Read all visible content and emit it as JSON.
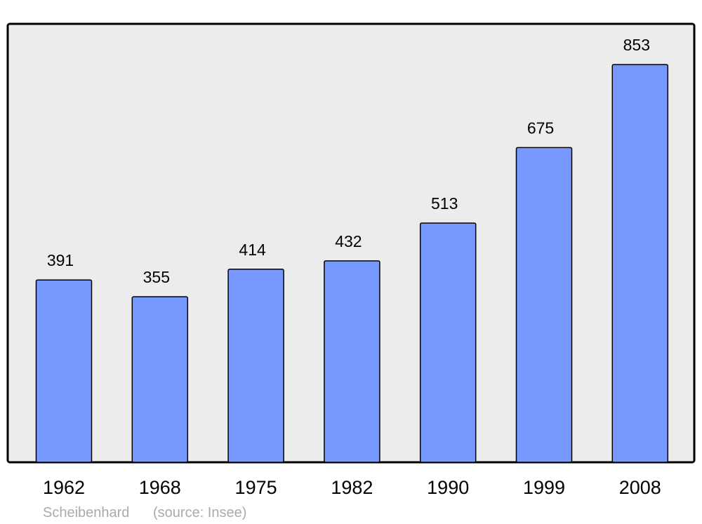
{
  "chart_data": {
    "type": "bar",
    "categories": [
      "1962",
      "1968",
      "1975",
      "1982",
      "1990",
      "1999",
      "2008"
    ],
    "values": [
      391,
      355,
      414,
      432,
      513,
      675,
      853
    ],
    "color": "#7799ff",
    "background": "#ececec",
    "annotations": [
      "Scheibenhard",
      "(source: Insee)"
    ]
  }
}
